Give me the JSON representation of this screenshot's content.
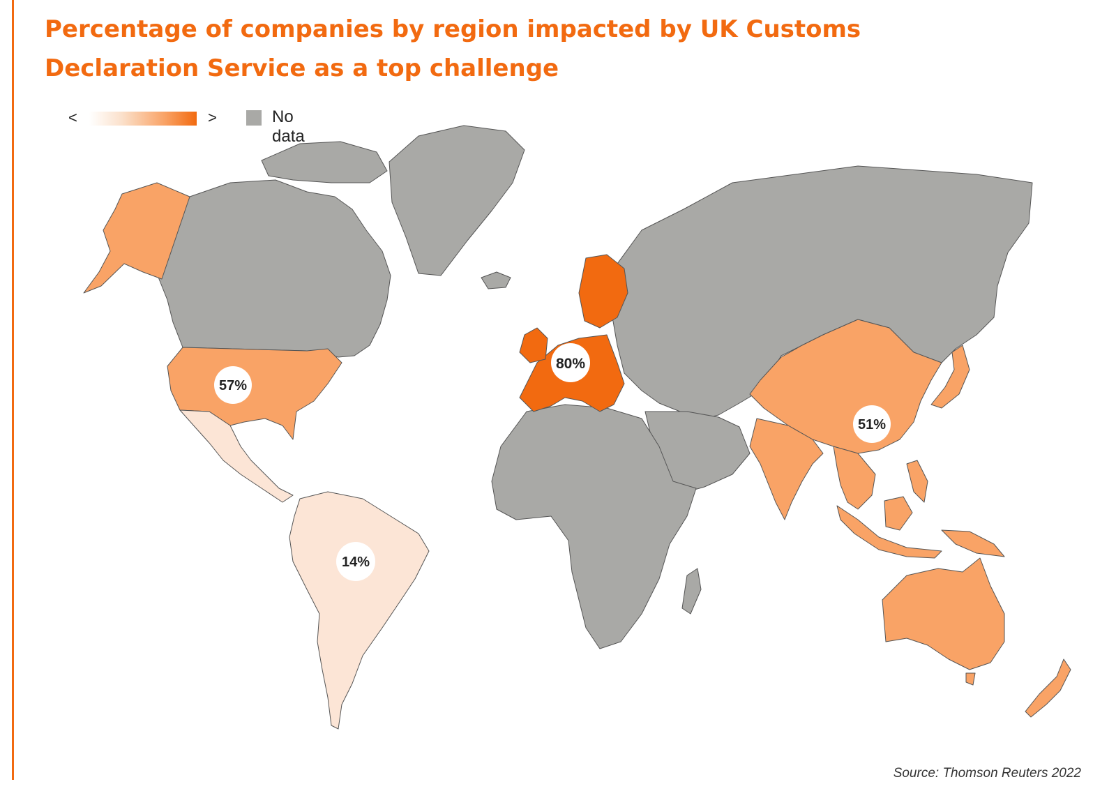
{
  "title": "Percentage of companies by region impacted by UK Customs Declaration Service as a top challenge",
  "legend": {
    "less_symbol": "<",
    "more_symbol": ">",
    "no_data_label": "No data",
    "no_data_color": "#a9a9a6",
    "ramp_colors": [
      "#ffffff",
      "#fbe1cc",
      "#f9a366",
      "#f26a10"
    ]
  },
  "colors": {
    "accent": "#f26a10",
    "europe": "#f26a10",
    "us_alaska": "#f9a366",
    "asia_pacific": "#f9a366",
    "latin_america": "#fce5d6",
    "no_data": "#a9a9a6",
    "borders": "#555555"
  },
  "regions": [
    {
      "name": "Europe",
      "value": "80%",
      "pct": 80
    },
    {
      "name": "United States",
      "value": "57%",
      "pct": 57
    },
    {
      "name": "Asia-Pacific",
      "value": "51%",
      "pct": 51
    },
    {
      "name": "Latin America",
      "value": "14%",
      "pct": 14
    }
  ],
  "source": "Source: Thomson Reuters 2022"
}
